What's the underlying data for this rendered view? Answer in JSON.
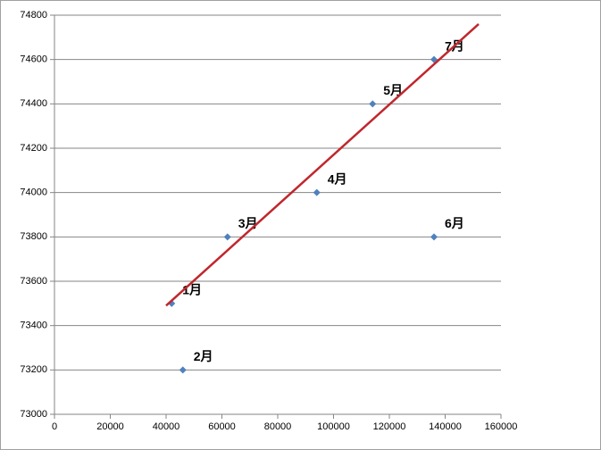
{
  "chart_data": {
    "type": "scatter",
    "series": [
      {
        "color": "#4f81bd",
        "x": [
          42000,
          46000,
          62000,
          94000,
          114000,
          136000,
          136000
        ],
        "values": [
          73500,
          73200,
          73800,
          74000,
          74400,
          73800,
          74600
        ],
        "labels": [
          "1月",
          "2月",
          "3月",
          "4月",
          "5月",
          "6月",
          "7月"
        ]
      }
    ],
    "trendline": {
      "x": [
        40000,
        152000
      ],
      "values": [
        73490,
        74760
      ],
      "color": "#c0272d"
    },
    "xlim": [
      0,
      160000
    ],
    "xticks": [
      0,
      20000,
      40000,
      60000,
      80000,
      100000,
      120000,
      140000,
      160000
    ],
    "ylim": [
      73000,
      74800
    ],
    "yticks": [
      73000,
      73200,
      73400,
      73600,
      73800,
      74000,
      74200,
      74400,
      74600,
      74800
    ],
    "grid": true
  }
}
